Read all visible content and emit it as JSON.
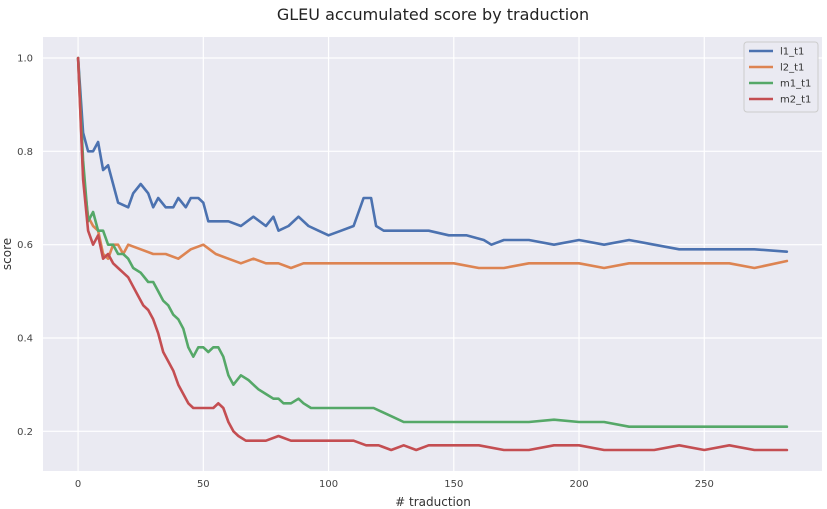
{
  "chart_data": {
    "type": "line",
    "title": "GLEU accumulated score by traduction",
    "xlabel": "# traduction",
    "ylabel": "score",
    "xlim": [
      -14,
      297
    ],
    "ylim": [
      0.115,
      1.045
    ],
    "xticks": [
      0,
      50,
      100,
      150,
      200,
      250
    ],
    "yticks": [
      0.2,
      0.4,
      0.6,
      0.8,
      1.0
    ],
    "xtick_labels": [
      "0",
      "50",
      "100",
      "150",
      "200",
      "250"
    ],
    "ytick_labels": [
      "0.2",
      "0.4",
      "0.6",
      "0.8",
      "1.0"
    ],
    "grid": true,
    "legend_position": "top-right",
    "series": [
      {
        "name": "l1_t1",
        "color": "#4c72b0",
        "points": [
          [
            0,
            1.0
          ],
          [
            2,
            0.84
          ],
          [
            4,
            0.8
          ],
          [
            6,
            0.8
          ],
          [
            8,
            0.82
          ],
          [
            10,
            0.76
          ],
          [
            12,
            0.77
          ],
          [
            14,
            0.73
          ],
          [
            16,
            0.69
          ],
          [
            20,
            0.68
          ],
          [
            22,
            0.71
          ],
          [
            25,
            0.73
          ],
          [
            28,
            0.71
          ],
          [
            30,
            0.68
          ],
          [
            32,
            0.7
          ],
          [
            35,
            0.68
          ],
          [
            38,
            0.68
          ],
          [
            40,
            0.7
          ],
          [
            43,
            0.68
          ],
          [
            45,
            0.7
          ],
          [
            48,
            0.7
          ],
          [
            50,
            0.69
          ],
          [
            52,
            0.65
          ],
          [
            55,
            0.65
          ],
          [
            60,
            0.65
          ],
          [
            65,
            0.64
          ],
          [
            70,
            0.66
          ],
          [
            75,
            0.64
          ],
          [
            78,
            0.66
          ],
          [
            80,
            0.63
          ],
          [
            84,
            0.64
          ],
          [
            88,
            0.66
          ],
          [
            92,
            0.64
          ],
          [
            96,
            0.63
          ],
          [
            100,
            0.62
          ],
          [
            105,
            0.63
          ],
          [
            110,
            0.64
          ],
          [
            112,
            0.67
          ],
          [
            114,
            0.7
          ],
          [
            117,
            0.7
          ],
          [
            119,
            0.64
          ],
          [
            122,
            0.63
          ],
          [
            130,
            0.63
          ],
          [
            140,
            0.63
          ],
          [
            148,
            0.62
          ],
          [
            155,
            0.62
          ],
          [
            162,
            0.61
          ],
          [
            165,
            0.6
          ],
          [
            170,
            0.61
          ],
          [
            180,
            0.61
          ],
          [
            190,
            0.6
          ],
          [
            200,
            0.61
          ],
          [
            210,
            0.6
          ],
          [
            220,
            0.61
          ],
          [
            230,
            0.6
          ],
          [
            240,
            0.59
          ],
          [
            250,
            0.59
          ],
          [
            260,
            0.59
          ],
          [
            270,
            0.59
          ],
          [
            283,
            0.585
          ]
        ]
      },
      {
        "name": "l2_t1",
        "color": "#dd8452",
        "points": [
          [
            0,
            1.0
          ],
          [
            2,
            0.75
          ],
          [
            4,
            0.66
          ],
          [
            6,
            0.64
          ],
          [
            8,
            0.63
          ],
          [
            10,
            0.58
          ],
          [
            12,
            0.57
          ],
          [
            14,
            0.6
          ],
          [
            16,
            0.6
          ],
          [
            18,
            0.58
          ],
          [
            20,
            0.6
          ],
          [
            25,
            0.59
          ],
          [
            30,
            0.58
          ],
          [
            35,
            0.58
          ],
          [
            40,
            0.57
          ],
          [
            45,
            0.59
          ],
          [
            50,
            0.6
          ],
          [
            55,
            0.58
          ],
          [
            60,
            0.57
          ],
          [
            65,
            0.56
          ],
          [
            70,
            0.57
          ],
          [
            75,
            0.56
          ],
          [
            80,
            0.56
          ],
          [
            85,
            0.55
          ],
          [
            90,
            0.56
          ],
          [
            95,
            0.56
          ],
          [
            100,
            0.56
          ],
          [
            110,
            0.56
          ],
          [
            120,
            0.56
          ],
          [
            130,
            0.56
          ],
          [
            140,
            0.56
          ],
          [
            150,
            0.56
          ],
          [
            160,
            0.55
          ],
          [
            170,
            0.55
          ],
          [
            180,
            0.56
          ],
          [
            190,
            0.56
          ],
          [
            200,
            0.56
          ],
          [
            210,
            0.55
          ],
          [
            220,
            0.56
          ],
          [
            230,
            0.56
          ],
          [
            240,
            0.56
          ],
          [
            250,
            0.56
          ],
          [
            260,
            0.56
          ],
          [
            270,
            0.55
          ],
          [
            283,
            0.565
          ]
        ]
      },
      {
        "name": "m1_t1",
        "color": "#55a868",
        "points": [
          [
            0,
            1.0
          ],
          [
            2,
            0.78
          ],
          [
            4,
            0.65
          ],
          [
            6,
            0.67
          ],
          [
            8,
            0.63
          ],
          [
            10,
            0.63
          ],
          [
            12,
            0.6
          ],
          [
            14,
            0.6
          ],
          [
            16,
            0.58
          ],
          [
            18,
            0.58
          ],
          [
            20,
            0.57
          ],
          [
            22,
            0.55
          ],
          [
            25,
            0.54
          ],
          [
            28,
            0.52
          ],
          [
            30,
            0.52
          ],
          [
            32,
            0.5
          ],
          [
            34,
            0.48
          ],
          [
            36,
            0.47
          ],
          [
            38,
            0.45
          ],
          [
            40,
            0.44
          ],
          [
            42,
            0.42
          ],
          [
            44,
            0.38
          ],
          [
            46,
            0.36
          ],
          [
            48,
            0.38
          ],
          [
            50,
            0.38
          ],
          [
            52,
            0.37
          ],
          [
            54,
            0.38
          ],
          [
            56,
            0.38
          ],
          [
            58,
            0.36
          ],
          [
            60,
            0.32
          ],
          [
            62,
            0.3
          ],
          [
            65,
            0.32
          ],
          [
            68,
            0.31
          ],
          [
            70,
            0.3
          ],
          [
            72,
            0.29
          ],
          [
            75,
            0.28
          ],
          [
            78,
            0.27
          ],
          [
            80,
            0.27
          ],
          [
            82,
            0.26
          ],
          [
            85,
            0.26
          ],
          [
            88,
            0.27
          ],
          [
            90,
            0.26
          ],
          [
            93,
            0.25
          ],
          [
            96,
            0.25
          ],
          [
            100,
            0.25
          ],
          [
            105,
            0.25
          ],
          [
            110,
            0.25
          ],
          [
            115,
            0.25
          ],
          [
            118,
            0.25
          ],
          [
            122,
            0.24
          ],
          [
            126,
            0.23
          ],
          [
            130,
            0.22
          ],
          [
            140,
            0.22
          ],
          [
            150,
            0.22
          ],
          [
            160,
            0.22
          ],
          [
            170,
            0.22
          ],
          [
            180,
            0.22
          ],
          [
            190,
            0.225
          ],
          [
            200,
            0.22
          ],
          [
            210,
            0.22
          ],
          [
            220,
            0.21
          ],
          [
            230,
            0.21
          ],
          [
            240,
            0.21
          ],
          [
            250,
            0.21
          ],
          [
            260,
            0.21
          ],
          [
            270,
            0.21
          ],
          [
            283,
            0.21
          ]
        ]
      },
      {
        "name": "m2_t1",
        "color": "#c44e52",
        "points": [
          [
            0,
            1.0
          ],
          [
            2,
            0.74
          ],
          [
            4,
            0.63
          ],
          [
            6,
            0.6
          ],
          [
            8,
            0.62
          ],
          [
            10,
            0.57
          ],
          [
            12,
            0.58
          ],
          [
            14,
            0.56
          ],
          [
            16,
            0.55
          ],
          [
            18,
            0.54
          ],
          [
            20,
            0.53
          ],
          [
            22,
            0.51
          ],
          [
            24,
            0.49
          ],
          [
            26,
            0.47
          ],
          [
            28,
            0.46
          ],
          [
            30,
            0.44
          ],
          [
            32,
            0.41
          ],
          [
            34,
            0.37
          ],
          [
            36,
            0.35
          ],
          [
            38,
            0.33
          ],
          [
            40,
            0.3
          ],
          [
            42,
            0.28
          ],
          [
            44,
            0.26
          ],
          [
            46,
            0.25
          ],
          [
            48,
            0.25
          ],
          [
            50,
            0.25
          ],
          [
            52,
            0.25
          ],
          [
            54,
            0.25
          ],
          [
            56,
            0.26
          ],
          [
            58,
            0.25
          ],
          [
            60,
            0.22
          ],
          [
            62,
            0.2
          ],
          [
            64,
            0.19
          ],
          [
            67,
            0.18
          ],
          [
            70,
            0.18
          ],
          [
            75,
            0.18
          ],
          [
            80,
            0.19
          ],
          [
            85,
            0.18
          ],
          [
            90,
            0.18
          ],
          [
            95,
            0.18
          ],
          [
            100,
            0.18
          ],
          [
            105,
            0.18
          ],
          [
            110,
            0.18
          ],
          [
            115,
            0.17
          ],
          [
            120,
            0.17
          ],
          [
            125,
            0.16
          ],
          [
            130,
            0.17
          ],
          [
            135,
            0.16
          ],
          [
            140,
            0.17
          ],
          [
            150,
            0.17
          ],
          [
            160,
            0.17
          ],
          [
            170,
            0.16
          ],
          [
            180,
            0.16
          ],
          [
            190,
            0.17
          ],
          [
            200,
            0.17
          ],
          [
            210,
            0.16
          ],
          [
            220,
            0.16
          ],
          [
            230,
            0.16
          ],
          [
            240,
            0.17
          ],
          [
            250,
            0.16
          ],
          [
            260,
            0.17
          ],
          [
            270,
            0.16
          ],
          [
            283,
            0.16
          ]
        ]
      }
    ]
  }
}
